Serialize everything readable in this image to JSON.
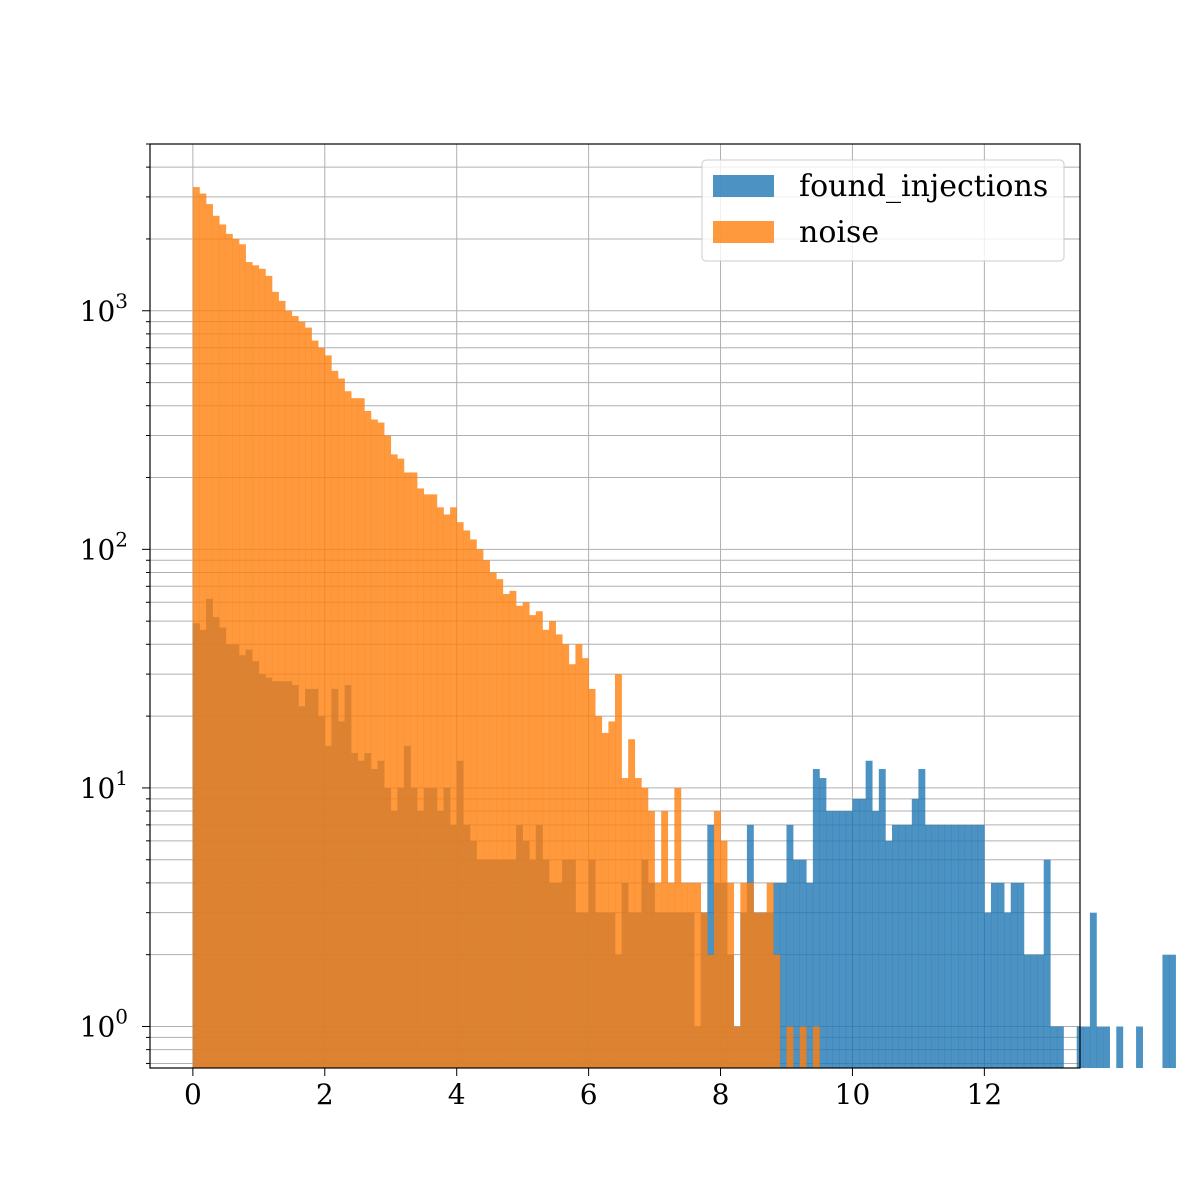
{
  "chart_data": {
    "type": "bar",
    "subtype": "histogram",
    "title": "",
    "xlabel": "",
    "ylabel": "",
    "xlim": [
      -0.65,
      13.45
    ],
    "ylim": [
      0.67,
      5000
    ],
    "yscale": "log",
    "grid": true,
    "legend_position": "top-right",
    "bin_width": 0.1,
    "x_start": 0.0,
    "x_ticks": [
      "0",
      "2",
      "4",
      "6",
      "8",
      "10",
      "12"
    ],
    "x_tick_values": [
      0,
      2,
      4,
      6,
      8,
      10,
      12
    ],
    "y_ticks": [
      {
        "value": 1,
        "base": "10",
        "exp": "0"
      },
      {
        "value": 10,
        "base": "10",
        "exp": "1"
      },
      {
        "value": 100,
        "base": "10",
        "exp": "2"
      },
      {
        "value": 1000,
        "base": "10",
        "exp": "3"
      }
    ],
    "series": [
      {
        "name": "found_injections",
        "color": "#1f77b4",
        "opacity": 0.8,
        "values": [
          49,
          46,
          62,
          52,
          47,
          40,
          40,
          36,
          38,
          34,
          30,
          29,
          28,
          28,
          28,
          27,
          22,
          26,
          26,
          20,
          15,
          26,
          19,
          27,
          14,
          13,
          14,
          12,
          13,
          10,
          8,
          10,
          15,
          10,
          8,
          10,
          10,
          8,
          10,
          7,
          13,
          7,
          6,
          5,
          5,
          5,
          5,
          5,
          5,
          7,
          6,
          5,
          7,
          5,
          4,
          4,
          5,
          5,
          3,
          3,
          5,
          3,
          3,
          3,
          2,
          4,
          3,
          3,
          5,
          4,
          3,
          3,
          3,
          3,
          3,
          3,
          1,
          3,
          7,
          4,
          4,
          2,
          1,
          3,
          7,
          3,
          3,
          3,
          4,
          4,
          7,
          5,
          5,
          4,
          12,
          11,
          8,
          8,
          8,
          8,
          9,
          9,
          13,
          8,
          12,
          6,
          7,
          7,
          7,
          9,
          12,
          7,
          7,
          7,
          7,
          7,
          7,
          7,
          7,
          7,
          3,
          4,
          4,
          3,
          4,
          4,
          2,
          2,
          2,
          5,
          1,
          1,
          0,
          0,
          1,
          1,
          3,
          1,
          1,
          0,
          1,
          0,
          0,
          1,
          0,
          0,
          0,
          2,
          2
        ]
      },
      {
        "name": "noise",
        "color": "#ff7f0e",
        "opacity": 0.8,
        "values": [
          3300,
          3100,
          2800,
          2500,
          2300,
          2100,
          2000,
          1900,
          1600,
          1550,
          1500,
          1400,
          1200,
          1100,
          1000,
          950,
          900,
          850,
          750,
          700,
          650,
          560,
          520,
          460,
          430,
          430,
          380,
          350,
          340,
          300,
          250,
          240,
          210,
          210,
          180,
          170,
          170,
          150,
          140,
          150,
          130,
          120,
          110,
          100,
          90,
          80,
          75,
          65,
          67,
          58,
          60,
          53,
          55,
          46,
          50,
          44,
          40,
          33,
          40,
          35,
          26,
          20,
          17,
          19,
          30,
          11,
          16,
          11,
          10,
          8,
          4,
          8,
          4,
          10,
          4,
          4,
          4,
          3,
          2,
          8,
          6,
          4,
          1,
          4,
          4,
          3,
          3,
          4,
          2,
          0,
          1,
          0,
          1,
          0,
          1,
          0,
          0,
          0,
          0,
          0,
          0,
          0,
          0,
          0,
          0,
          0,
          0,
          0,
          0,
          0,
          0,
          0,
          0,
          0,
          0,
          0,
          0,
          0,
          0,
          0,
          0,
          0,
          0,
          0,
          0,
          0,
          0,
          0,
          0,
          0,
          0,
          0,
          0,
          0,
          0,
          0,
          0,
          0,
          0,
          0,
          0,
          0,
          0,
          0,
          0,
          0,
          0,
          0,
          0
        ]
      }
    ]
  }
}
